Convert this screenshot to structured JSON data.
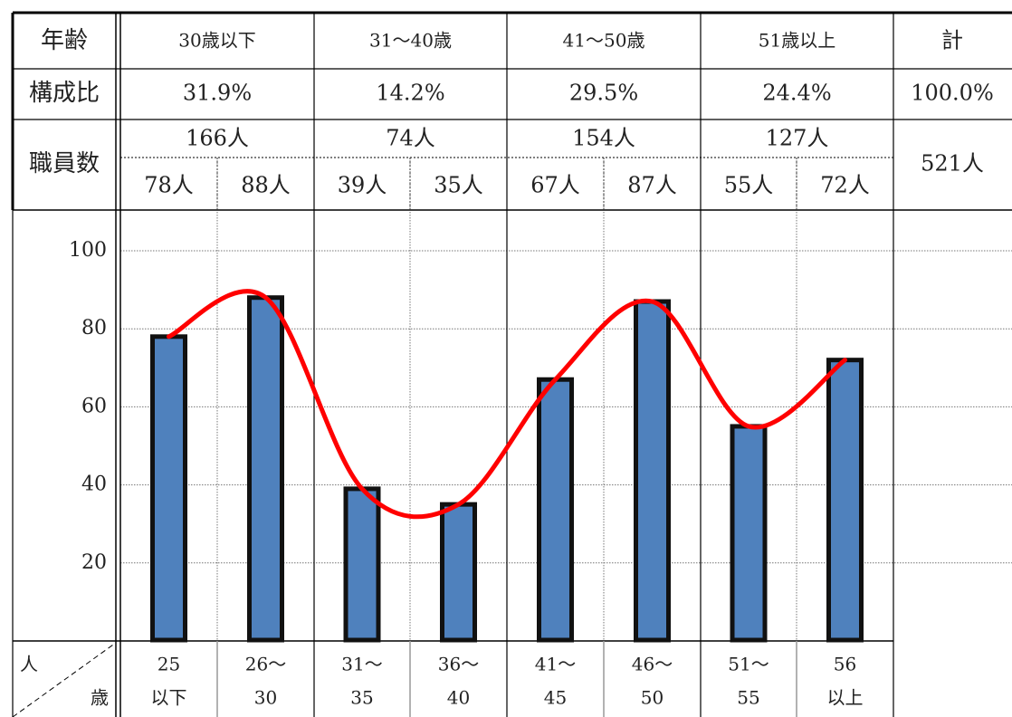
{
  "header": {
    "age_label": "年齢",
    "ratio_label": "構成比",
    "staff_label": "職員数",
    "total_label": "計",
    "groups": [
      {
        "label": "30歳以下",
        "ratio": "31.9%",
        "count": "166人"
      },
      {
        "label": "31～40歳",
        "ratio": "14.2%",
        "count": "74人"
      },
      {
        "label": "41～50歳",
        "ratio": "29.5%",
        "count": "154人"
      },
      {
        "label": "51歳以上",
        "ratio": "24.4%",
        "count": "127人"
      }
    ],
    "sub_counts": [
      "78人",
      "88人",
      "39人",
      "35人",
      "67人",
      "87人",
      "55人",
      "72人"
    ],
    "total_ratio": "100.0%",
    "total_count": "521人"
  },
  "corner": {
    "top": "人",
    "bottom": "歳"
  },
  "chart_data": {
    "type": "bar",
    "categories": [
      {
        "line1": "25",
        "line2": "以下"
      },
      {
        "line1": "26～",
        "line2": "30"
      },
      {
        "line1": "31～",
        "line2": "35"
      },
      {
        "line1": "36～",
        "line2": "40"
      },
      {
        "line1": "41～",
        "line2": "45"
      },
      {
        "line1": "46～",
        "line2": "50"
      },
      {
        "line1": "51～",
        "line2": "55"
      },
      {
        "line1": "56",
        "line2": "以上"
      }
    ],
    "values": [
      78,
      88,
      39,
      35,
      67,
      87,
      55,
      72
    ],
    "trend_line": true,
    "y_ticks": [
      "20",
      "40",
      "60",
      "80",
      "100"
    ],
    "ylim": [
      0,
      100
    ],
    "grid": true,
    "colors": {
      "bar": "#4f81bd",
      "bar_border": "#111111",
      "trend": "#ff0000"
    }
  }
}
